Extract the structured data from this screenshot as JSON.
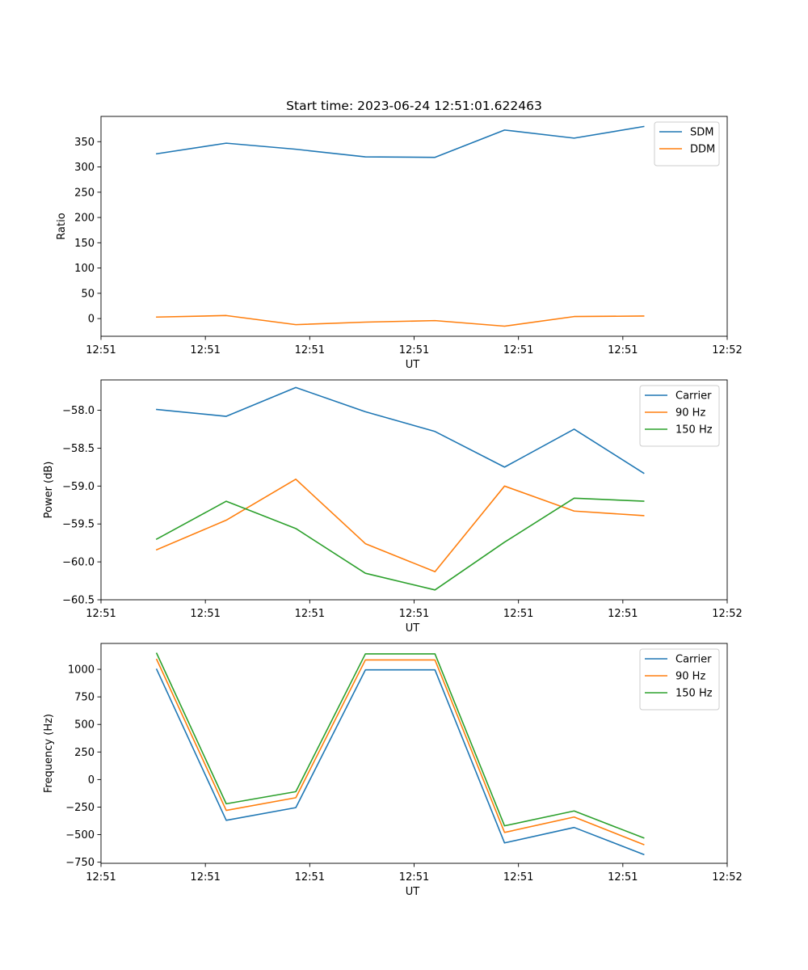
{
  "figure": {
    "title": "Start time: 2023-06-24 12:51:01.622463"
  },
  "chart_data": [
    {
      "type": "line",
      "title": "Start time: 2023-06-24 12:51:01.622463",
      "xlabel": "UT",
      "ylabel": "Ratio",
      "x": [
        1,
        2,
        3,
        4,
        5,
        6,
        7,
        8
      ],
      "xlim": [
        0.2,
        9.2
      ],
      "xticks": [
        0.2,
        1.7,
        3.2,
        4.7,
        6.2,
        7.7,
        9.2
      ],
      "xticklabels": [
        "12:51",
        "12:51",
        "12:51",
        "12:51",
        "12:51",
        "12:51",
        "12:52"
      ],
      "ylim": [
        -35,
        400
      ],
      "yticks": [
        0,
        50,
        100,
        150,
        200,
        250,
        300,
        350
      ],
      "yticklabels": [
        "0",
        "50",
        "100",
        "150",
        "200",
        "250",
        "300",
        "350"
      ],
      "legend": "top-right",
      "grid": false,
      "series": [
        {
          "name": "SDM",
          "color": "#1f77b4",
          "values": [
            326,
            347,
            335,
            320,
            319,
            373,
            357,
            380
          ]
        },
        {
          "name": "DDM",
          "color": "#ff7f0e",
          "values": [
            3,
            6,
            -12,
            -7,
            -4,
            -15,
            4,
            5
          ]
        }
      ]
    },
    {
      "type": "line",
      "title": "",
      "xlabel": "UT",
      "ylabel": "Power (dB)",
      "x": [
        1,
        2,
        3,
        4,
        5,
        6,
        7,
        8
      ],
      "xlim": [
        0.2,
        9.2
      ],
      "xticks": [
        0.2,
        1.7,
        3.2,
        4.7,
        6.2,
        7.7,
        9.2
      ],
      "xticklabels": [
        "12:51",
        "12:51",
        "12:51",
        "12:51",
        "12:51",
        "12:51",
        "12:52"
      ],
      "ylim": [
        -60.5,
        -57.6
      ],
      "yticks": [
        -60.5,
        -60.0,
        -59.5,
        -59.0,
        -58.5,
        -58.0
      ],
      "yticklabels": [
        "−60.5",
        "−60.0",
        "−59.5",
        "−59.0",
        "−58.5",
        "−58.0"
      ],
      "legend": "top-right",
      "grid": false,
      "series": [
        {
          "name": "Carrier",
          "color": "#1f77b4",
          "values": [
            -57.99,
            -58.08,
            -57.7,
            -58.02,
            -58.28,
            -58.75,
            -58.25,
            -58.83
          ]
        },
        {
          "name": "90 Hz",
          "color": "#ff7f0e",
          "values": [
            -59.84,
            -59.45,
            -58.91,
            -59.76,
            -60.13,
            -59.0,
            -59.33,
            -59.39
          ]
        },
        {
          "name": "150 Hz",
          "color": "#2ca02c",
          "values": [
            -59.7,
            -59.2,
            -59.56,
            -60.15,
            -60.37,
            -59.74,
            -59.16,
            -59.2
          ]
        }
      ]
    },
    {
      "type": "line",
      "title": "",
      "xlabel": "UT",
      "ylabel": "Frequency (Hz)",
      "x": [
        1,
        2,
        3,
        4,
        5,
        6,
        7,
        8
      ],
      "xlim": [
        0.2,
        9.2
      ],
      "xticks": [
        0.2,
        1.7,
        3.2,
        4.7,
        6.2,
        7.7,
        9.2
      ],
      "xticklabels": [
        "12:51",
        "12:51",
        "12:51",
        "12:51",
        "12:51",
        "12:51",
        "12:52"
      ],
      "ylim": [
        -760,
        1235
      ],
      "yticks": [
        -750,
        -500,
        -250,
        0,
        250,
        500,
        750,
        1000
      ],
      "yticklabels": [
        "−750",
        "−500",
        "−250",
        "0",
        "250",
        "500",
        "750",
        "1000"
      ],
      "legend": "top-right",
      "grid": false,
      "series": [
        {
          "name": "Carrier",
          "color": "#1f77b4",
          "values": [
            1000,
            -370,
            -255,
            995,
            995,
            -575,
            -435,
            -680
          ]
        },
        {
          "name": "90 Hz",
          "color": "#ff7f0e",
          "values": [
            1090,
            -280,
            -165,
            1085,
            1085,
            -480,
            -340,
            -590
          ]
        },
        {
          "name": "150 Hz",
          "color": "#2ca02c",
          "values": [
            1145,
            -220,
            -110,
            1140,
            1140,
            -420,
            -285,
            -530
          ]
        }
      ]
    }
  ]
}
